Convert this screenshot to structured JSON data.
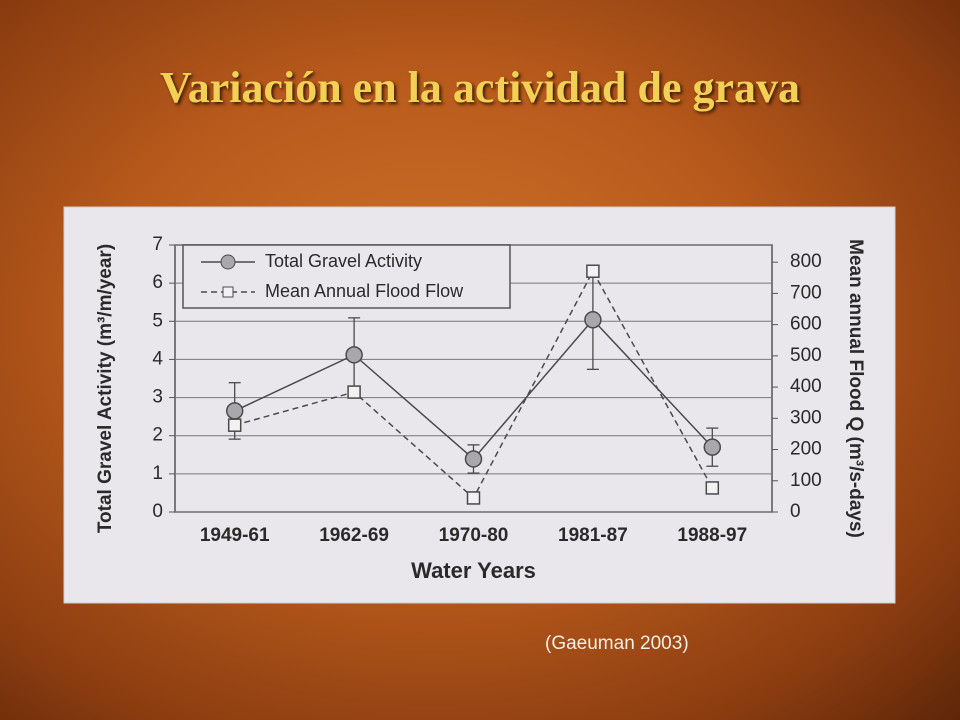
{
  "slide": {
    "title": "Variación en la actividad de grava",
    "caption": "(Gaeuman 2003)"
  },
  "chart_data": {
    "type": "line",
    "categories": [
      "1949-61",
      "1962-69",
      "1970-80",
      "1981-87",
      "1988-97"
    ],
    "xlabel": "Water Years",
    "ylabel": "Total Gravel Activity (m³/m/year)",
    "y2label": "Mean annual Flood Q (m³/s-days)",
    "ylim": [
      0,
      7
    ],
    "yticks": [
      0,
      1,
      2,
      3,
      4,
      5,
      6,
      7
    ],
    "y2lim": [
      0,
      855
    ],
    "y2ticks": [
      0,
      100,
      200,
      300,
      400,
      500,
      600,
      700,
      800
    ],
    "grid": true,
    "legend": "upper left",
    "series": [
      {
        "name": "Total Gravel Activity",
        "color": "#4a4a4a",
        "marker": "circle",
        "dashed": false,
        "values": [
          2.65,
          4.12,
          1.39,
          5.04,
          1.7
        ],
        "errors": [
          0.74,
          0.97,
          0.37,
          1.3,
          0.5
        ]
      },
      {
        "name": "Mean Annual Flood Flow",
        "color": "#4a4a4a",
        "marker": "square",
        "dashed": true,
        "axis": "y2",
        "values": [
          278,
          384,
          45,
          771,
          77
        ]
      }
    ]
  }
}
